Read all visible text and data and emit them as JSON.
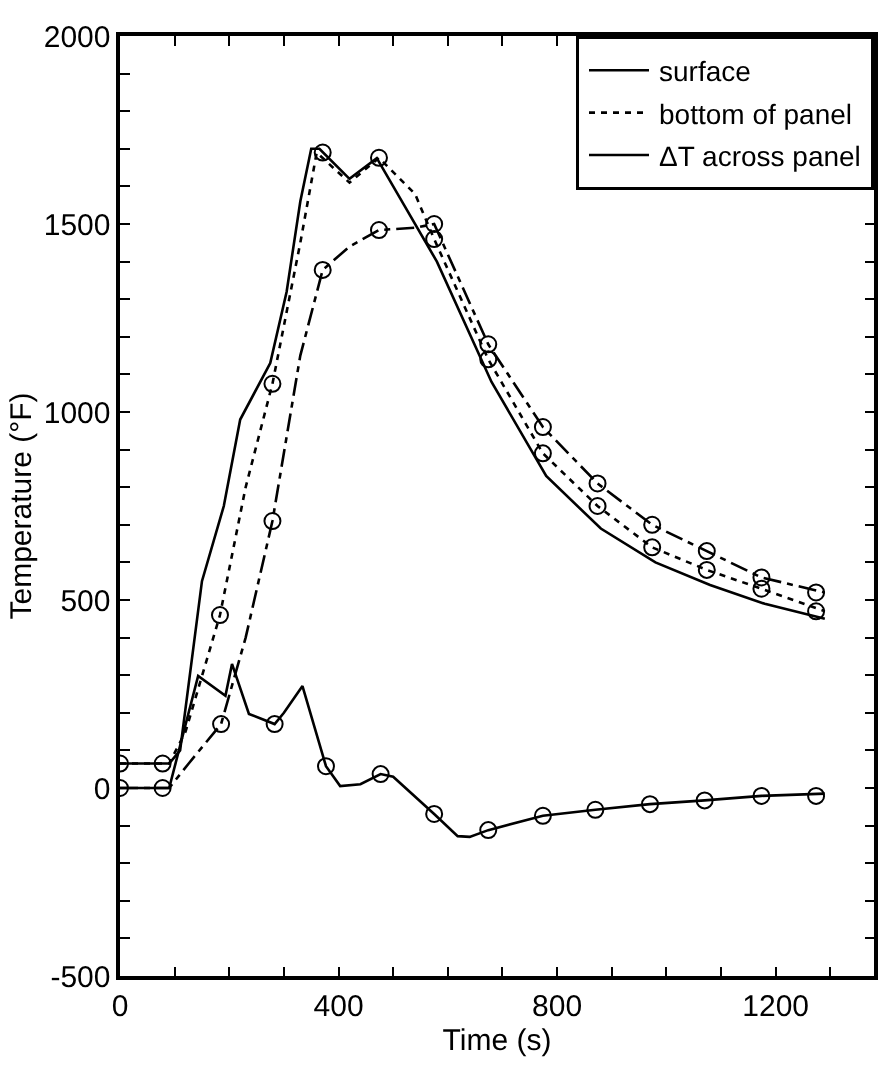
{
  "chart_data": {
    "type": "line",
    "xlabel": "Time (s)",
    "ylabel": "Temperature (°F)",
    "xlim": [
      0,
      1380
    ],
    "ylim": [
      -500,
      2000
    ],
    "xticks": [
      0,
      {
        "value": 100,
        "label": null
      },
      {
        "value": 200,
        "label": null
      },
      {
        "value": 300,
        "label": null
      },
      400,
      {
        "value": 500,
        "label": null
      },
      {
        "value": 600,
        "label": null
      },
      {
        "value": 700,
        "label": null
      },
      800,
      {
        "value": 900,
        "label": null
      },
      {
        "value": 1000,
        "label": null
      },
      {
        "value": 1100,
        "label": null
      },
      1200,
      {
        "value": 1300,
        "label": null
      }
    ],
    "yticks": [
      -500,
      {
        "value": -400,
        "label": null
      },
      {
        "value": -300,
        "label": null
      },
      {
        "value": -200,
        "label": null
      },
      {
        "value": -100,
        "label": null
      },
      0,
      {
        "value": 100,
        "label": null
      },
      {
        "value": 200,
        "label": null
      },
      {
        "value": 300,
        "label": null
      },
      {
        "value": 400,
        "label": null
      },
      500,
      {
        "value": 600,
        "label": null
      },
      {
        "value": 700,
        "label": null
      },
      {
        "value": 800,
        "label": null
      },
      {
        "value": 900,
        "label": null
      },
      1000,
      {
        "value": 1100,
        "label": null
      },
      {
        "value": 1200,
        "label": null
      },
      {
        "value": 1300,
        "label": null
      },
      {
        "value": 1400,
        "label": null
      },
      1500,
      {
        "value": 1600,
        "label": null
      },
      {
        "value": 1700,
        "label": null
      },
      {
        "value": 1800,
        "label": null
      },
      {
        "value": 1900,
        "label": null
      },
      2000
    ],
    "legend": "top right",
    "series": [
      {
        "name": "surface",
        "color": "#000000",
        "line_style": "solid",
        "marker": "none",
        "x": [
          0,
          90,
          110,
          150,
          190,
          220,
          275,
          305,
          330,
          350,
          365,
          420,
          470,
          520,
          580,
          680,
          780,
          880,
          980,
          1080,
          1180,
          1290
        ],
        "values": [
          65,
          65,
          100,
          550,
          750,
          980,
          1130,
          1320,
          1560,
          1700,
          1700,
          1620,
          1675,
          1550,
          1400,
          1080,
          830,
          690,
          600,
          540,
          490,
          450
        ]
      },
      {
        "name": "bottom of panel",
        "color": "#000000",
        "line_style": "dotted",
        "marker": "none",
        "x": [
          0,
          90,
          120,
          183,
          230,
          279,
          330,
          360,
          420,
          474,
          540,
          575,
          674,
          774,
          874,
          974,
          1074,
          1174,
          1290
        ],
        "values": [
          65,
          65,
          150,
          460,
          800,
          1075,
          1450,
          1690,
          1610,
          1676,
          1580,
          1460,
          1140,
          890,
          750,
          640,
          580,
          530,
          470
        ]
      },
      {
        "color": "#000000",
        "line_style": "dashdot",
        "marker": "none",
        "x": [
          0,
          90,
          125,
          185,
          230,
          279,
          330,
          371,
          420,
          474,
          540,
          575,
          674,
          774,
          874,
          974,
          1074,
          1174,
          1290
        ],
        "values": [
          0,
          0,
          64,
          170,
          400,
          710,
          1150,
          1378,
          1440,
          1484,
          1490,
          1500,
          1180,
          960,
          810,
          700,
          630,
          560,
          520
        ]
      },
      {
        "name": "ΔT across panel",
        "color": "#000000",
        "line_style": "solid",
        "marker": "none",
        "x": [
          0,
          90,
          143,
          193,
          205,
          236,
          283,
          300,
          334,
          377,
          403,
          440,
          477,
          500,
          575,
          618,
          640,
          674,
          774,
          870,
          970,
          1070,
          1174,
          1290
        ],
        "values": [
          0,
          0,
          298,
          245,
          330,
          197,
          170,
          200,
          271,
          58,
          5,
          10,
          37,
          30,
          -69,
          -128,
          -130,
          -112,
          -74,
          -58,
          -43,
          -33,
          -21,
          -15
        ]
      },
      {
        "type": "scatter",
        "color": "#000000",
        "marker": "circle",
        "x": [
          0,
          78,
          183,
          279,
          371,
          474,
          575,
          674,
          774,
          874,
          974,
          1074,
          1174,
          1274
        ],
        "values": [
          65,
          65,
          460,
          1075,
          1690,
          1676,
          1460,
          1140,
          890,
          750,
          640,
          580,
          530,
          470
        ]
      },
      {
        "type": "scatter",
        "color": "#000000",
        "marker": "circle",
        "x": [
          0,
          78,
          185,
          279,
          371,
          474,
          575,
          674,
          774,
          874,
          974,
          1074,
          1174,
          1274
        ],
        "values": [
          0,
          0,
          170,
          710,
          1378,
          1484,
          1500,
          1180,
          960,
          810,
          700,
          630,
          560,
          520
        ]
      },
      {
        "type": "scatter",
        "color": "#000000",
        "marker": "circle",
        "x": [
          283,
          377,
          477,
          575,
          674,
          774,
          870,
          970,
          1070,
          1174,
          1274
        ],
        "values": [
          170,
          58,
          37,
          -69,
          -112,
          -74,
          -58,
          -43,
          -33,
          -21,
          -21
        ]
      }
    ]
  }
}
